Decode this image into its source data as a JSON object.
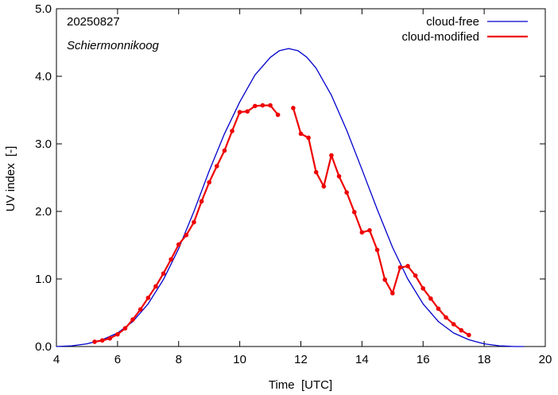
{
  "chart_data": {
    "type": "line",
    "date_label": "20250827",
    "location": "Schiermonnikoog",
    "xlabel": "Time  [UTC]",
    "ylabel": "UV index  [-]",
    "xlim": [
      4,
      20
    ],
    "ylim": [
      0,
      5
    ],
    "xticks": [
      4,
      6,
      8,
      10,
      12,
      14,
      16,
      18,
      20
    ],
    "xtick_labels": [
      "4",
      "6",
      "8",
      "10",
      "12",
      "14",
      "16",
      "18",
      "20"
    ],
    "yticks": [
      0,
      1,
      2,
      3,
      4,
      5
    ],
    "ytick_labels": [
      "0.0",
      "1.0",
      "2.0",
      "3.0",
      "4.0",
      "5.0"
    ],
    "grid": false,
    "legend_position": "top-right",
    "series": [
      {
        "name": "cloud-free",
        "color": "#0000cc",
        "markers": false,
        "x": [
          4.0,
          4.5,
          5.0,
          5.5,
          6.0,
          6.5,
          7.0,
          7.5,
          8.0,
          8.5,
          9.0,
          9.5,
          10.0,
          10.5,
          11.0,
          11.3,
          11.6,
          11.9,
          12.2,
          12.5,
          13.0,
          13.5,
          14.0,
          14.5,
          15.0,
          15.5,
          16.0,
          16.5,
          17.0,
          17.5,
          18.0,
          18.5,
          19.0,
          19.3
        ],
        "values": [
          0.0,
          0.01,
          0.04,
          0.1,
          0.2,
          0.37,
          0.63,
          0.99,
          1.45,
          2.0,
          2.6,
          3.15,
          3.62,
          4.02,
          4.28,
          4.38,
          4.41,
          4.38,
          4.28,
          4.12,
          3.72,
          3.2,
          2.62,
          2.03,
          1.47,
          1.0,
          0.63,
          0.37,
          0.2,
          0.1,
          0.04,
          0.01,
          0.0,
          0.0
        ]
      },
      {
        "name": "cloud-modified",
        "color": "#ee0000",
        "markers": true,
        "segments": [
          {
            "x": [
              5.25,
              5.5,
              5.75,
              6.0,
              6.25,
              6.5,
              6.75,
              7.0,
              7.25,
              7.5,
              7.75,
              8.0,
              8.25,
              8.5,
              8.75,
              9.0,
              9.25,
              9.5,
              9.75,
              10.0,
              10.25,
              10.5,
              10.75,
              11.0,
              11.25
            ],
            "values": [
              0.07,
              0.09,
              0.12,
              0.18,
              0.27,
              0.4,
              0.55,
              0.72,
              0.89,
              1.08,
              1.29,
              1.51,
              1.65,
              1.84,
              2.15,
              2.43,
              2.67,
              2.9,
              3.19,
              3.47,
              3.48,
              3.56,
              3.57,
              3.57,
              3.43
            ]
          },
          {
            "x": [
              11.75,
              12.0,
              12.25,
              12.5,
              12.75,
              13.0,
              13.25,
              13.5,
              13.75,
              14.0,
              14.25,
              14.5,
              14.75,
              15.0,
              15.25,
              15.5,
              15.75,
              16.0,
              16.25,
              16.5,
              16.75,
              17.0,
              17.25,
              17.5
            ],
            "values": [
              3.53,
              3.15,
              3.09,
              2.58,
              2.37,
              2.83,
              2.52,
              2.28,
              1.99,
              1.69,
              1.72,
              1.43,
              0.99,
              0.79,
              1.17,
              1.19,
              1.05,
              0.86,
              0.71,
              0.56,
              0.43,
              0.33,
              0.24,
              0.17
            ]
          }
        ]
      }
    ]
  }
}
